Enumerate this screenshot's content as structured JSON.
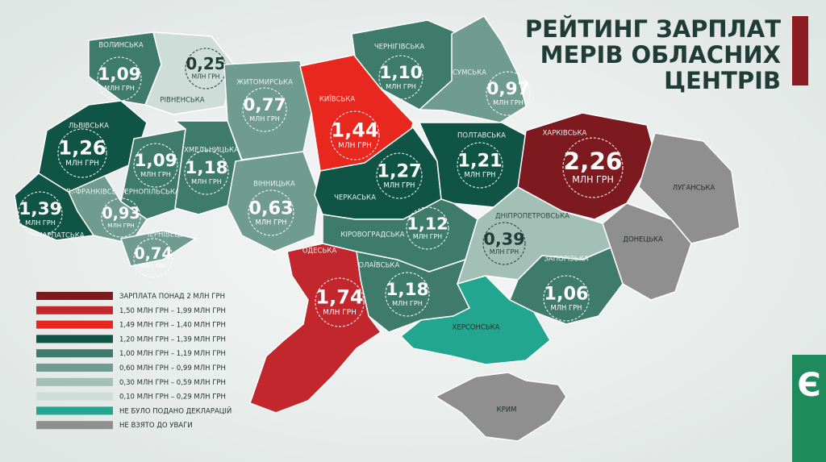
{
  "title": [
    "РЕЙТИНГ ЗАРПЛАТ",
    "МЕРІВ ОБЛАСНИХ",
    "ЦЕНТРІВ"
  ],
  "unit": "МЛН ГРН",
  "logo": "Є",
  "regions": [
    {
      "name": "ВОЛИНСЬКА",
      "value": "1,09",
      "color": "#3f7b6b"
    },
    {
      "name": "РІВНЕНСЬКА",
      "value": "0,25",
      "color": "#cfddd8"
    },
    {
      "name": "ЖИТОМИРСЬКА",
      "value": "0,77",
      "color": "#6f9c8e"
    },
    {
      "name": "КИЇВСЬКА",
      "value": "1,44",
      "color": "#e8271f"
    },
    {
      "name": "ЧЕРНІГІВСЬКА",
      "value": "1,10",
      "color": "#3f7b6b"
    },
    {
      "name": "СУМСЬКА",
      "value": "0,97",
      "color": "#6f9c8e"
    },
    {
      "name": "ЛЬВІВСЬКА",
      "value": "1,26",
      "color": "#0f5445"
    },
    {
      "name": "ТЕРНОПІЛЬСЬКА",
      "value": "1,09",
      "color": "#3f7b6b"
    },
    {
      "name": "ХМЕЛЬНИЦЬКА",
      "value": "1,18",
      "color": "#3f7b6b"
    },
    {
      "name": "ІВ.-ФРАНКІВСЬКА",
      "value": "0,93",
      "color": "#6f9c8e"
    },
    {
      "name": "ЗАКАРПАТСЬКА",
      "value": "1,39",
      "color": "#0f5445"
    },
    {
      "name": "ЧЕРНІВЕЦЬКА",
      "value": "0,74",
      "color": "#6f9c8e"
    },
    {
      "name": "ВІННИЦЬКА",
      "value": "0,63",
      "color": "#6f9c8e"
    },
    {
      "name": "ЧЕРКАСЬКА",
      "value": "1,27",
      "color": "#0f5445"
    },
    {
      "name": "ПОЛТАВСЬКА",
      "value": "1,21",
      "color": "#0f5445"
    },
    {
      "name": "ХАРКІВСЬКА",
      "value": "2,26",
      "color": "#7c1a20"
    },
    {
      "name": "ЛУГАНСЬКА",
      "color": "#8f8f8f"
    },
    {
      "name": "ДОНЕЦЬКА",
      "color": "#8f8f8f"
    },
    {
      "name": "КІРОВОГРАДСЬКА",
      "value": "1,12",
      "color": "#3f7b6b"
    },
    {
      "name": "ДНІПРОПЕТРОВСЬКА",
      "value": "0,39",
      "color": "#a3c0b6"
    },
    {
      "name": "ЗАПОРІЗЬКА",
      "value": "1,06",
      "color": "#3f7b6b"
    },
    {
      "name": "МИКОЛАЇВСЬКА",
      "value": "1,18",
      "color": "#3f7b6b"
    },
    {
      "name": "ОДЕСЬКА",
      "value": "1,74",
      "color": "#c1272d"
    },
    {
      "name": "ХЕРСОНСЬКА",
      "color": "#23a68f"
    },
    {
      "name": "КРИМ",
      "color": "#8f8f8f"
    }
  ],
  "legend": [
    {
      "label": "ЗАРПЛАТА ПОНАД 2 МЛН ГРН",
      "color": "#7c1a20"
    },
    {
      "label": "1,50 МЛН ГРН – 1,99 МЛН ГРН",
      "color": "#c1272d"
    },
    {
      "label": "1,49 МЛН ГРН – 1,40 МЛН ГРН",
      "color": "#e8271f"
    },
    {
      "label": "1,20 МЛН ГРН – 1,39 МЛН ГРН",
      "color": "#0f5445"
    },
    {
      "label": "1,00 МЛН ГРН – 1,19 МЛН ГРН",
      "color": "#3f7b6b"
    },
    {
      "label": "0,60 МЛН ГРН – 0,99 МЛН ГРН",
      "color": "#6f9c8e"
    },
    {
      "label": "0,30 МЛН ГРН – 0,59 МЛН ГРН",
      "color": "#a3c0b6"
    },
    {
      "label": "0,10 МЛН ГРН – 0,29 МЛН ГРН",
      "color": "#cfddd8"
    },
    {
      "label": "НЕ БУЛО ПОДАНО ДЕКЛАРАЦІЙ",
      "color": "#23a68f"
    },
    {
      "label": "НЕ ВЗЯТО ДО УВАГИ",
      "color": "#8f8f8f"
    }
  ]
}
